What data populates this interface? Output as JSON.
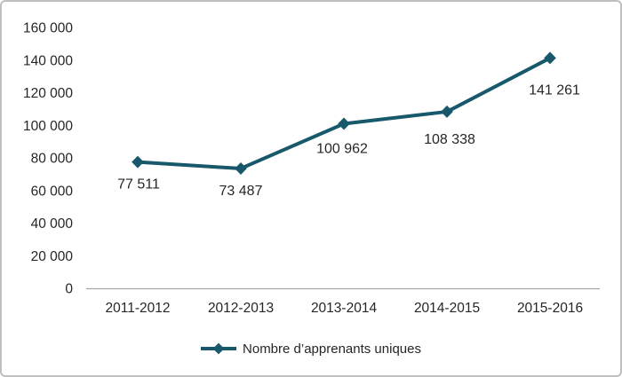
{
  "chart_data": {
    "type": "line",
    "title": "",
    "categories": [
      "2011-2012",
      "2012-2013",
      "2013-2014",
      "2014-2015",
      "2015-2016"
    ],
    "series": [
      {
        "name": "Nombre d’apprenants uniques",
        "values": [
          77511,
          73487,
          100962,
          108338,
          141261
        ]
      }
    ],
    "value_labels": [
      "77 511",
      "73 487",
      "100 962",
      "108 338",
      "141 261"
    ],
    "y_tick_labels": [
      "0",
      "20 000",
      "40 000",
      "60 000",
      "80 000",
      "100 000",
      "120 000",
      "140 000",
      "160 000"
    ],
    "ylim": [
      0,
      160000
    ],
    "y_tick_step": 20000,
    "grid": false,
    "legend_position": "bottom",
    "marker_shape": "diamond",
    "colors": {
      "series": "#17586a",
      "axis_line": "#a6a6a6",
      "text": "#262626",
      "border": "#bfbfbf",
      "background": "#ffffff"
    }
  }
}
